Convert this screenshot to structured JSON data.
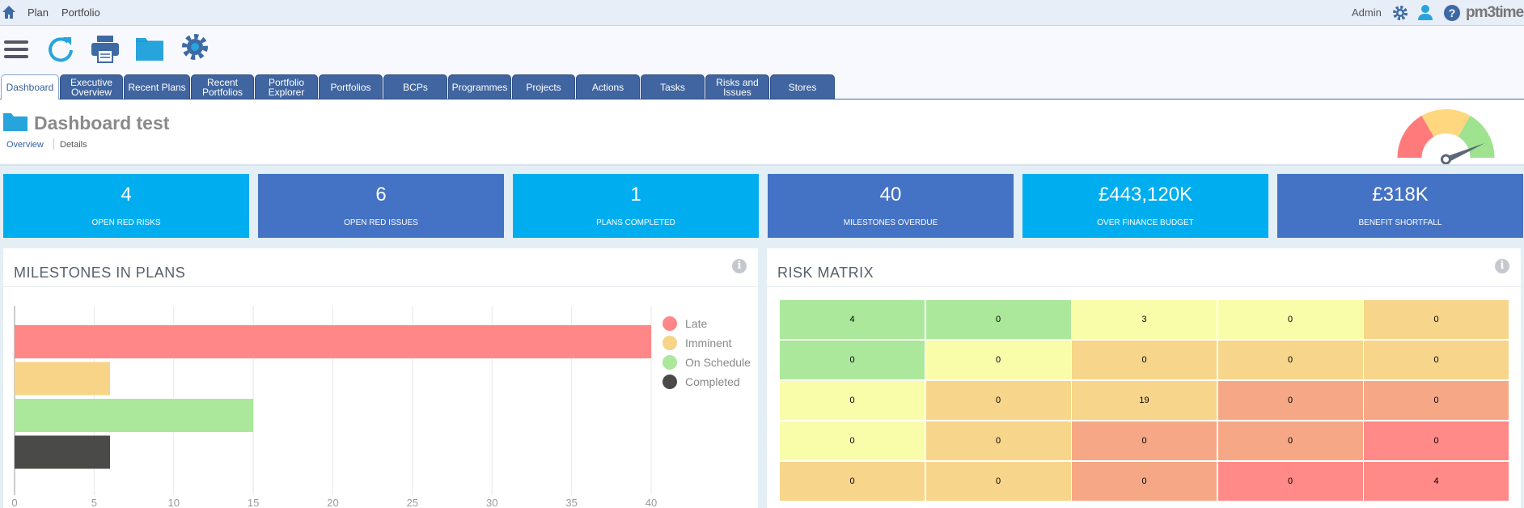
{
  "topbar": {
    "breadcrumb": [
      "Plan",
      "Portfolio"
    ],
    "user": "Admin",
    "logo": "pm3time",
    "icons": [
      "home-icon",
      "gear-icon",
      "user-icon",
      "help-icon"
    ]
  },
  "toolbar": {
    "icons": [
      "menu-icon",
      "refresh-icon",
      "print-icon",
      "folder-icon",
      "settings-icon"
    ]
  },
  "tabs": [
    {
      "label": "Dashboard",
      "active": true
    },
    {
      "label": "Executive Overview"
    },
    {
      "label": "Recent Plans"
    },
    {
      "label": "Recent Portfolios"
    },
    {
      "label": "Portfolio Explorer"
    },
    {
      "label": "Portfolios"
    },
    {
      "label": "BCPs"
    },
    {
      "label": "Programmes"
    },
    {
      "label": "Projects"
    },
    {
      "label": "Actions"
    },
    {
      "label": "Tasks"
    },
    {
      "label": "Risks and Issues"
    },
    {
      "label": "Stores"
    }
  ],
  "header": {
    "title": "Dashboard test",
    "links": [
      "Overview",
      "Details"
    ],
    "gauge_colors": [
      "#ff7b7b",
      "#ffd77e",
      "#9fe28f"
    ]
  },
  "kpis": [
    {
      "value": "4",
      "label": "OPEN RED RISKS",
      "color": "#00aeef"
    },
    {
      "value": "6",
      "label": "OPEN RED ISSUES",
      "color": "#4472c4"
    },
    {
      "value": "1",
      "label": "PLANS COMPLETED",
      "color": "#00aeef"
    },
    {
      "value": "40",
      "label": "MILESTONES OVERDUE",
      "color": "#4472c4"
    },
    {
      "value": "£443,120K",
      "label": "OVER FINANCE BUDGET",
      "color": "#00aeef"
    },
    {
      "value": "£318K",
      "label": "BENEFIT SHORTFALL",
      "color": "#4472c4"
    }
  ],
  "milestones": {
    "title": "MILESTONES IN PLANS"
  },
  "chart_data": {
    "type": "bar",
    "orientation": "horizontal",
    "categories": [
      "Late",
      "Imminent",
      "On Schedule",
      "Completed"
    ],
    "values": [
      40,
      6,
      15,
      6
    ],
    "colors": [
      "#ff8787",
      "#f7d488",
      "#abe89b",
      "#4a4a48"
    ],
    "xlim": [
      0,
      40
    ],
    "xticks": [
      "0",
      "5",
      "10",
      "15",
      "20",
      "25",
      "30",
      "35",
      "40"
    ],
    "grid": true,
    "legend": "right"
  },
  "risk": {
    "title": "RISK MATRIX",
    "rows": [
      [
        "4",
        "0",
        "3",
        "0",
        "0"
      ],
      [
        "0",
        "0",
        "0",
        "0",
        "0"
      ],
      [
        "0",
        "0",
        "19",
        "0",
        "0"
      ],
      [
        "0",
        "0",
        "0",
        "0",
        "0"
      ],
      [
        "0",
        "0",
        "0",
        "0",
        "4"
      ]
    ],
    "colors": [
      [
        "#abe89b",
        "#abe89b",
        "#f9fdaa",
        "#f9fdaa",
        "#f7d58a"
      ],
      [
        "#abe89b",
        "#f9fdaa",
        "#f7d58a",
        "#f7d58a",
        "#f7d58a"
      ],
      [
        "#f9fdaa",
        "#f7d58a",
        "#f7d58a",
        "#f6a886",
        "#f6a886"
      ],
      [
        "#f9fdaa",
        "#f7d58a",
        "#f6a886",
        "#f6a886",
        "#ff8a87"
      ],
      [
        "#f7d58a",
        "#f7d58a",
        "#f6a886",
        "#ff8a87",
        "#ff8a87"
      ]
    ]
  }
}
